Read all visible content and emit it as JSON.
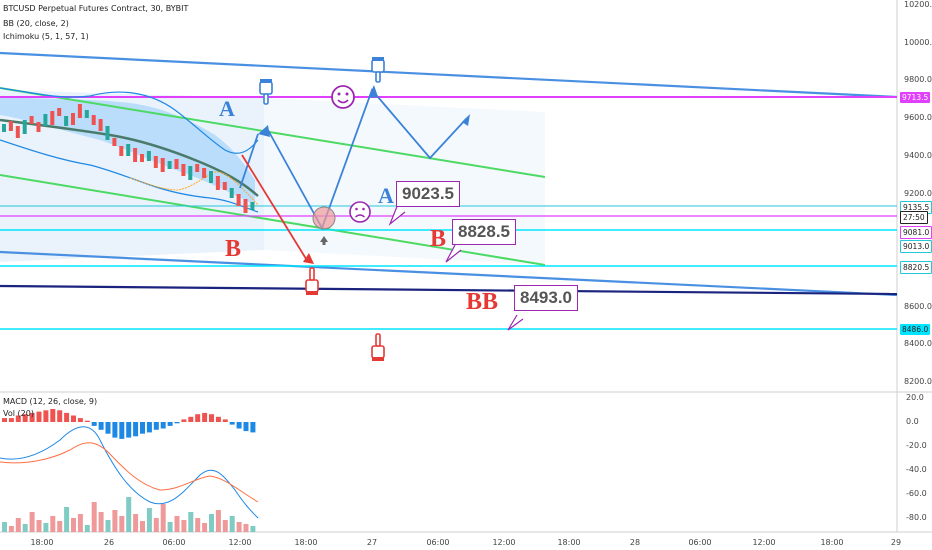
{
  "header": {
    "symbol": "BTCUSD Perpetual Futures Contract, 30, BYBIT",
    "indicator_bb": "BB (20, close, 2)",
    "indicator_ichimoku": "Ichimoku (5, 1, 57, 1)",
    "indicator_macd": "MACD (12, 26, close, 9)",
    "indicator_vol": "Vol (20)"
  },
  "chart_data": [
    {
      "type": "line",
      "title": "BTCUSD Perpetual Futures Contract, 30, BYBIT",
      "x_ticks": [
        "18:00",
        "26",
        "06:00",
        "12:00",
        "18:00",
        "27",
        "06:00",
        "12:00",
        "18:00",
        "28",
        "06:00",
        "12:00",
        "18:00",
        "29"
      ],
      "y_ticks": [
        "10200.0",
        "10000.0",
        "9800.0",
        "9600.0",
        "9400.0",
        "9200.0",
        "9000.0",
        "8800.0",
        "8600.0",
        "8400.0",
        "8200.0"
      ],
      "ylim": [
        8200,
        10200
      ],
      "price_tags": [
        {
          "label": "9713.5",
          "bg": "#e040fb",
          "fg": "#ffffff"
        },
        {
          "label": "9135.5",
          "bg": "#ffffff",
          "fg": "#222222",
          "border": "#26c6da"
        },
        {
          "label": "27:50",
          "bg": "#ffffff",
          "fg": "#222222",
          "border": "#222222"
        },
        {
          "label": "9081.0",
          "bg": "#ffffff",
          "fg": "#222222",
          "border": "#e040fb"
        },
        {
          "label": "9013.0",
          "bg": "#ffffff",
          "fg": "#222222",
          "border": "#26c6da"
        },
        {
          "label": "8820.5",
          "bg": "#ffffff",
          "fg": "#222222",
          "border": "#26c6da"
        },
        {
          "label": "8486.0",
          "bg": "#00e5ff",
          "fg": "#222222"
        }
      ],
      "callouts": [
        {
          "label": "9023.5"
        },
        {
          "label": "8828.5"
        },
        {
          "label": "8493.0"
        }
      ],
      "scenario_labels": {
        "a_upper": "A",
        "a_lower": "A",
        "b_left": "B",
        "b_right": "B",
        "bb": "BB"
      },
      "emoji": {
        "happy": "☺",
        "sad": "☹"
      }
    },
    {
      "type": "bar",
      "title": "MACD (12, 26, close, 9)",
      "y_ticks": [
        "20.0",
        "0.0",
        "-20.0",
        "-40.0",
        "-60.0",
        "-80.0"
      ],
      "ylim": [
        -80,
        20
      ]
    }
  ],
  "colors": {
    "channel_blue": "#4a90e2",
    "channel_green": "#4cd964",
    "annotation_red": "#e53935",
    "arrow_blue": "#3b82d8",
    "purple": "#9c27b0",
    "magenta": "#e040fb",
    "cyan": "#26c6da"
  }
}
